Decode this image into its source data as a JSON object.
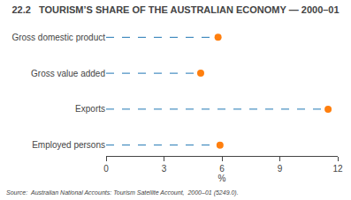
{
  "chart_data": {
    "type": "lollipop",
    "title": "22.2   TOURISM’S SHARE OF THE AUSTRALIAN ECONOMY — 2000–01",
    "categories": [
      "Gross domestic product",
      "Gross value added",
      "Exports",
      "Employed persons"
    ],
    "values": [
      5.8,
      4.9,
      11.5,
      5.9
    ],
    "orientation": "horizontal",
    "xlabel": "%",
    "xlim": [
      0,
      12
    ],
    "xticks": [
      0,
      3,
      6,
      9,
      12
    ],
    "line_style": "dashed",
    "marker": "circle",
    "grid": false,
    "annotations": [
      "Source:  Australian National Accounts: Tourism Satellite Account,  2000–01 (5249.0)."
    ]
  }
}
